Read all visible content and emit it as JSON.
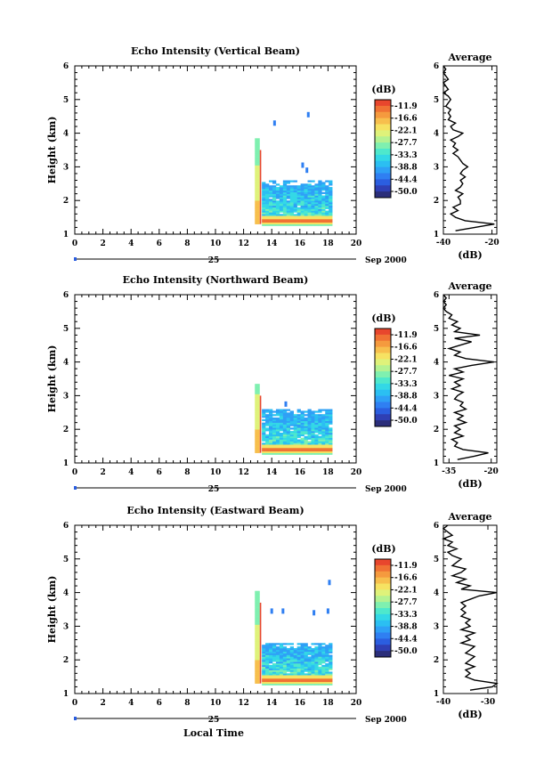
{
  "chart_data": [
    {
      "type": "heatmap",
      "title": "Echo Intensity (Vertical Beam)",
      "ylabel": "Height (km)",
      "xlim": [
        0,
        20
      ],
      "ylim": [
        1,
        6
      ],
      "x_ticks": [
        "0",
        "2",
        "4",
        "6",
        "8",
        "10",
        "12",
        "14",
        "16",
        "18",
        "20"
      ],
      "y_ticks": [
        "1",
        "2",
        "3",
        "4",
        "5",
        "6"
      ],
      "date_day": "25",
      "date_month_year": "Sep 2000",
      "colorbar": {
        "unit": "(dB)",
        "labels": [
          "-11.9",
          "-16.6",
          "-22.1",
          "-27.7",
          "-33.3",
          "-38.8",
          "-44.4",
          "-50.0"
        ]
      },
      "echo_region": {
        "start_time": 12.8,
        "end_time": 18.3,
        "top_km": 2.55,
        "strong_layer_km": 1.4,
        "spike_top_km": 3.8
      },
      "scattered_echoes": [
        {
          "time": 14.2,
          "height": 4.3
        },
        {
          "time": 16.6,
          "height": 4.55
        },
        {
          "time": 16.2,
          "height": 3.05
        },
        {
          "time": 16.5,
          "height": 2.9
        }
      ],
      "profile": {
        "title": "Average",
        "xlabel": "(dB)",
        "xlim": [
          -40,
          -18
        ],
        "x_ticks": [
          "-40",
          "-20"
        ],
        "y_ticks": [
          "1",
          "2",
          "3",
          "4",
          "5",
          "6"
        ],
        "height": [
          1.1,
          1.2,
          1.3,
          1.4,
          1.5,
          1.6,
          1.7,
          1.8,
          1.9,
          2.0,
          2.1,
          2.2,
          2.3,
          2.4,
          2.5,
          2.6,
          2.7,
          2.8,
          2.9,
          3.0,
          3.1,
          3.2,
          3.3,
          3.4,
          3.5,
          3.6,
          3.7,
          3.8,
          3.9,
          4.0,
          4.1,
          4.2,
          4.3,
          4.4,
          4.5,
          4.6,
          4.7,
          4.8,
          4.9,
          5.0,
          5.1,
          5.2,
          5.3,
          5.4,
          5.5,
          5.6,
          5.7,
          5.8,
          5.9,
          6.0
        ],
        "value": [
          -35,
          -27,
          -19,
          -31,
          -35,
          -37,
          -34,
          -36,
          -33,
          -33,
          -34,
          -32,
          -35,
          -33,
          -32,
          -33,
          -31,
          -33,
          -32,
          -30,
          -32,
          -33,
          -34,
          -36,
          -34,
          -36,
          -35,
          -37,
          -34,
          -32,
          -36,
          -37,
          -35,
          -38,
          -37,
          -38,
          -37,
          -39,
          -38,
          -37,
          -38,
          -40,
          -38,
          -39,
          -40,
          -38,
          -39,
          -40,
          -39,
          -40
        ]
      }
    },
    {
      "type": "heatmap",
      "title": "Echo Intensity (Northward Beam)",
      "ylabel": "Height (km)",
      "xlim": [
        0,
        20
      ],
      "ylim": [
        1,
        6
      ],
      "x_ticks": [
        "0",
        "2",
        "4",
        "6",
        "8",
        "10",
        "12",
        "14",
        "16",
        "18",
        "20"
      ],
      "y_ticks": [
        "1",
        "2",
        "3",
        "4",
        "5",
        "6"
      ],
      "date_day": "25",
      "date_month_year": "Sep 2000",
      "colorbar": {
        "unit": "(dB)",
        "labels": [
          "-11.9",
          "-16.6",
          "-22.1",
          "-27.7",
          "-33.3",
          "-38.8",
          "-44.4",
          "-50.0"
        ]
      },
      "echo_region": {
        "start_time": 12.8,
        "end_time": 18.3,
        "top_km": 2.55,
        "strong_layer_km": 1.4,
        "spike_top_km": 3.3
      },
      "scattered_echoes": [
        {
          "time": 15.0,
          "height": 2.75
        }
      ],
      "profile": {
        "title": "Average",
        "xlabel": "(dB)",
        "xlim": [
          -37,
          -18
        ],
        "x_ticks": [
          "-35",
          "-20"
        ],
        "y_ticks": [
          "1",
          "2",
          "3",
          "4",
          "5",
          "6"
        ],
        "height": [
          1.1,
          1.2,
          1.3,
          1.4,
          1.5,
          1.6,
          1.7,
          1.8,
          1.9,
          2.0,
          2.1,
          2.2,
          2.3,
          2.4,
          2.5,
          2.6,
          2.7,
          2.8,
          2.9,
          3.0,
          3.1,
          3.2,
          3.3,
          3.4,
          3.5,
          3.6,
          3.7,
          3.8,
          3.9,
          4.0,
          4.1,
          4.2,
          4.3,
          4.4,
          4.5,
          4.6,
          4.7,
          4.8,
          4.9,
          5.0,
          5.1,
          5.2,
          5.3,
          5.4,
          5.5,
          5.6,
          5.7,
          5.8,
          5.9,
          6.0
        ],
        "value": [
          -32,
          -26,
          -21,
          -30,
          -33,
          -32,
          -34,
          -30,
          -33,
          -31,
          -33,
          -29,
          -32,
          -30,
          -33,
          -29,
          -31,
          -30,
          -33,
          -32,
          -30,
          -34,
          -31,
          -33,
          -30,
          -35,
          -30,
          -33,
          -27,
          -19,
          -29,
          -33,
          -31,
          -35,
          -31,
          -27,
          -33,
          -24,
          -33,
          -31,
          -34,
          -32,
          -35,
          -34,
          -36,
          -37,
          -36,
          -37,
          -36,
          -37
        ]
      }
    },
    {
      "type": "heatmap",
      "title": "Echo Intensity (Eastward Beam)",
      "ylabel": "Height (km)",
      "xlabel": "Local Time",
      "xlim": [
        0,
        20
      ],
      "ylim": [
        1,
        6
      ],
      "x_ticks": [
        "0",
        "2",
        "4",
        "6",
        "8",
        "10",
        "12",
        "14",
        "16",
        "18",
        "20"
      ],
      "y_ticks": [
        "1",
        "2",
        "3",
        "4",
        "5",
        "6"
      ],
      "date_day": "25",
      "date_month_year": "Sep 2000",
      "colorbar": {
        "unit": "(dB)",
        "labels": [
          "-11.9",
          "-16.6",
          "-22.1",
          "-27.7",
          "-33.3",
          "-38.8",
          "-44.4",
          "-50.0"
        ]
      },
      "echo_region": {
        "start_time": 12.8,
        "end_time": 18.3,
        "top_km": 2.45,
        "strong_layer_km": 1.4,
        "spike_top_km": 4.0
      },
      "scattered_echoes": [
        {
          "time": 18.1,
          "height": 4.3
        },
        {
          "time": 14.0,
          "height": 3.45
        },
        {
          "time": 14.8,
          "height": 3.45
        },
        {
          "time": 17.0,
          "height": 3.4
        },
        {
          "time": 18.0,
          "height": 3.45
        }
      ],
      "profile": {
        "title": "Average",
        "xlabel": "(dB)",
        "xlim": [
          -40,
          -28
        ],
        "x_ticks": [
          "-40",
          "-30"
        ],
        "y_ticks": [
          "1",
          "2",
          "3",
          "4",
          "5",
          "6"
        ],
        "height": [
          1.1,
          1.2,
          1.3,
          1.4,
          1.5,
          1.6,
          1.7,
          1.8,
          1.9,
          2.0,
          2.1,
          2.2,
          2.3,
          2.4,
          2.5,
          2.6,
          2.7,
          2.8,
          2.9,
          3.0,
          3.1,
          3.2,
          3.3,
          3.4,
          3.5,
          3.6,
          3.7,
          3.8,
          3.9,
          4.0,
          4.1,
          4.2,
          4.3,
          4.4,
          4.5,
          4.6,
          4.7,
          4.8,
          4.9,
          5.0,
          5.1,
          5.2,
          5.3,
          5.4,
          5.5,
          5.6,
          5.7,
          5.8,
          5.9,
          6.0
        ],
        "value": [
          -34,
          -29,
          -28,
          -33,
          -35,
          -34,
          -35,
          -33,
          -35,
          -34,
          -33,
          -35,
          -34,
          -33,
          -36,
          -34,
          -35,
          -33,
          -36,
          -34,
          -35,
          -34,
          -36,
          -35,
          -36,
          -35,
          -36,
          -34,
          -32,
          -28,
          -36,
          -34,
          -37,
          -35,
          -38,
          -36,
          -35,
          -38,
          -37,
          -36,
          -38,
          -39,
          -37,
          -39,
          -38,
          -40,
          -38,
          -39,
          -40,
          -39
        ]
      }
    }
  ]
}
